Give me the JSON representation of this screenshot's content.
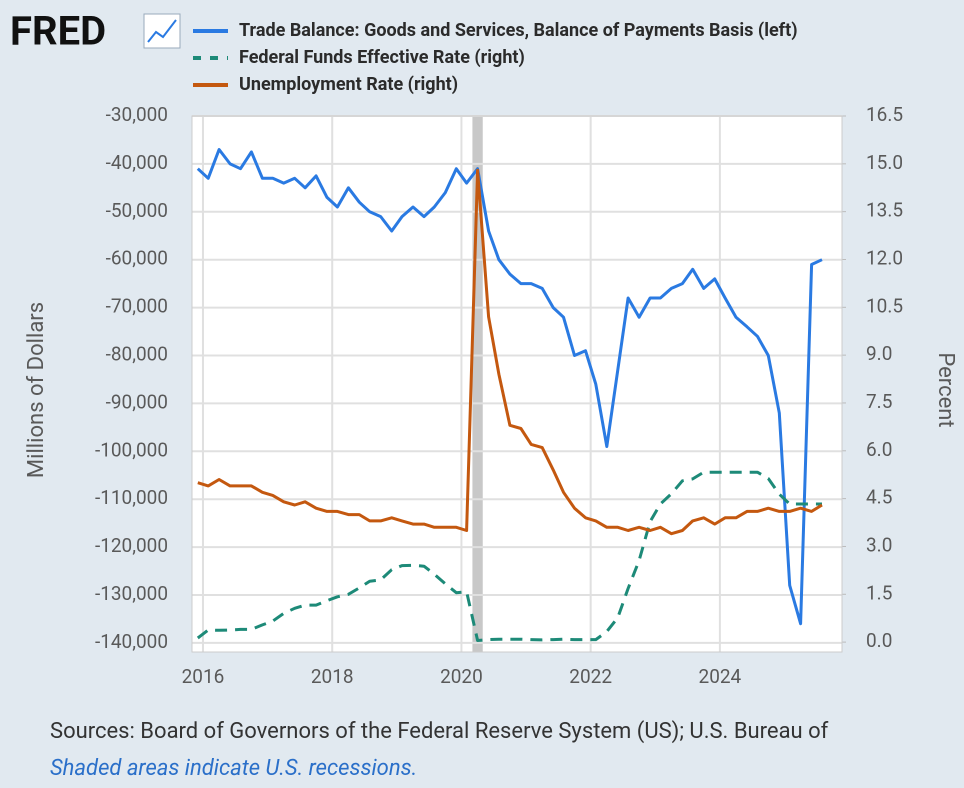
{
  "chart_data": {
    "type": "line",
    "logo": "FRED",
    "ylabel": "Millions of Dollars",
    "y2label": "Percent",
    "sources": "Sources: Board of Governors of the Federal Reserve System (US); U.S. Bureau of",
    "note": "Shaded areas indicate U.S. recessions.",
    "grid": true,
    "xlim": [
      2015.83,
      2025.89
    ],
    "xticks": [
      2016,
      2018,
      2020,
      2022,
      2024
    ],
    "ylim": [
      -141900,
      -30000
    ],
    "yticks": [
      {
        "value": -30000,
        "label": "-30,000"
      },
      {
        "value": -40000,
        "label": "-40,000"
      },
      {
        "value": -50000,
        "label": "-50,000"
      },
      {
        "value": -60000,
        "label": "-60,000"
      },
      {
        "value": -70000,
        "label": "-70,000"
      },
      {
        "value": -80000,
        "label": "-80,000"
      },
      {
        "value": -90000,
        "label": "-90,000"
      },
      {
        "value": -100000,
        "label": "-100,000"
      },
      {
        "value": -110000,
        "label": "-110,000"
      },
      {
        "value": -120000,
        "label": "-120,000"
      },
      {
        "value": -130000,
        "label": "-130,000"
      },
      {
        "value": -140000,
        "label": "-140,000"
      }
    ],
    "y2lim": [
      -0.31,
      16.5
    ],
    "y2ticks": [
      16.5,
      {
        "value": 15,
        "label": "15.0"
      },
      13.5,
      {
        "value": 12,
        "label": "12.0"
      },
      10.5,
      {
        "value": 9,
        "label": "9.0"
      },
      7.5,
      {
        "value": 6,
        "label": "6.0"
      },
      4.5,
      {
        "value": 3,
        "label": "3.0"
      },
      1.5,
      {
        "value": 0,
        "label": "0.0"
      }
    ],
    "recessions": [
      [
        2020.17,
        2020.33
      ]
    ],
    "x": [
      2015.92,
      2016.08,
      2016.25,
      2016.42,
      2016.58,
      2016.75,
      2016.92,
      2017.08,
      2017.25,
      2017.42,
      2017.58,
      2017.75,
      2017.92,
      2018.08,
      2018.25,
      2018.42,
      2018.58,
      2018.75,
      2018.92,
      2019.08,
      2019.25,
      2019.42,
      2019.58,
      2019.75,
      2019.92,
      2020.08,
      2020.25,
      2020.42,
      2020.58,
      2020.75,
      2020.92,
      2021.08,
      2021.25,
      2021.42,
      2021.58,
      2021.75,
      2021.92,
      2022.08,
      2022.25,
      2022.42,
      2022.58,
      2022.75,
      2022.92,
      2023.08,
      2023.25,
      2023.42,
      2023.58,
      2023.75,
      2023.92,
      2024.08,
      2024.25,
      2024.42,
      2024.58,
      2024.75,
      2024.92,
      2025.08,
      2025.25,
      2025.42,
      2025.58
    ],
    "series": [
      {
        "name": "Trade Balance: Goods and Services, Balance of Payments Basis (left)",
        "color": "#2a7ae2",
        "axis": "y",
        "dash": false,
        "values": [
          -41000,
          -43000,
          -37000,
          -40000,
          -41000,
          -37500,
          -43000,
          -43000,
          -44000,
          -43000,
          -45000,
          -42500,
          -47000,
          -49000,
          -45000,
          -48000,
          -50000,
          -51000,
          -54000,
          -51000,
          -49000,
          -51000,
          -49000,
          -46000,
          -41000,
          -44000,
          -41000,
          -54000,
          -60000,
          -63000,
          -65000,
          -65000,
          -66000,
          -70000,
          -72000,
          -80000,
          -79000,
          -86000,
          -99000,
          -83000,
          -68000,
          -72000,
          -68000,
          -68000,
          -66000,
          -65000,
          -62000,
          -66000,
          -64000,
          -68000,
          -72000,
          -74000,
          -76000,
          -80000,
          -92000,
          -128000,
          -136000,
          -61000,
          -60000
        ]
      },
      {
        "name": "Federal Funds Effective Rate (right)",
        "color": "#1d8a78",
        "axis": "y2",
        "dash": true,
        "values": [
          0.13,
          0.38,
          0.37,
          0.38,
          0.4,
          0.4,
          0.54,
          0.66,
          0.9,
          1.06,
          1.16,
          1.16,
          1.3,
          1.42,
          1.5,
          1.7,
          1.91,
          1.95,
          2.27,
          2.4,
          2.41,
          2.38,
          2.13,
          1.83,
          1.55,
          1.58,
          0.05,
          0.08,
          0.09,
          0.09,
          0.09,
          0.08,
          0.07,
          0.08,
          0.09,
          0.08,
          0.08,
          0.08,
          0.33,
          0.77,
          1.68,
          2.56,
          3.78,
          4.33,
          4.65,
          5.06,
          5.12,
          5.33,
          5.33,
          5.33,
          5.33,
          5.33,
          5.33,
          5.13,
          4.64,
          4.33,
          4.33,
          4.33,
          4.33
        ]
      },
      {
        "name": "Unemployment Rate (right)",
        "color": "#c4580f",
        "axis": "y2",
        "dash": false,
        "values": [
          5.0,
          4.9,
          5.1,
          4.9,
          4.9,
          4.9,
          4.7,
          4.6,
          4.4,
          4.3,
          4.4,
          4.2,
          4.1,
          4.1,
          4.0,
          4.0,
          3.8,
          3.8,
          3.9,
          3.8,
          3.7,
          3.7,
          3.6,
          3.6,
          3.6,
          3.5,
          14.8,
          10.2,
          8.4,
          6.8,
          6.7,
          6.2,
          6.1,
          5.4,
          4.7,
          4.2,
          3.9,
          3.8,
          3.6,
          3.6,
          3.5,
          3.6,
          3.5,
          3.6,
          3.4,
          3.5,
          3.8,
          3.9,
          3.7,
          3.9,
          3.9,
          4.1,
          4.1,
          4.2,
          4.1,
          4.1,
          4.2,
          4.1,
          4.3
        ]
      }
    ]
  }
}
